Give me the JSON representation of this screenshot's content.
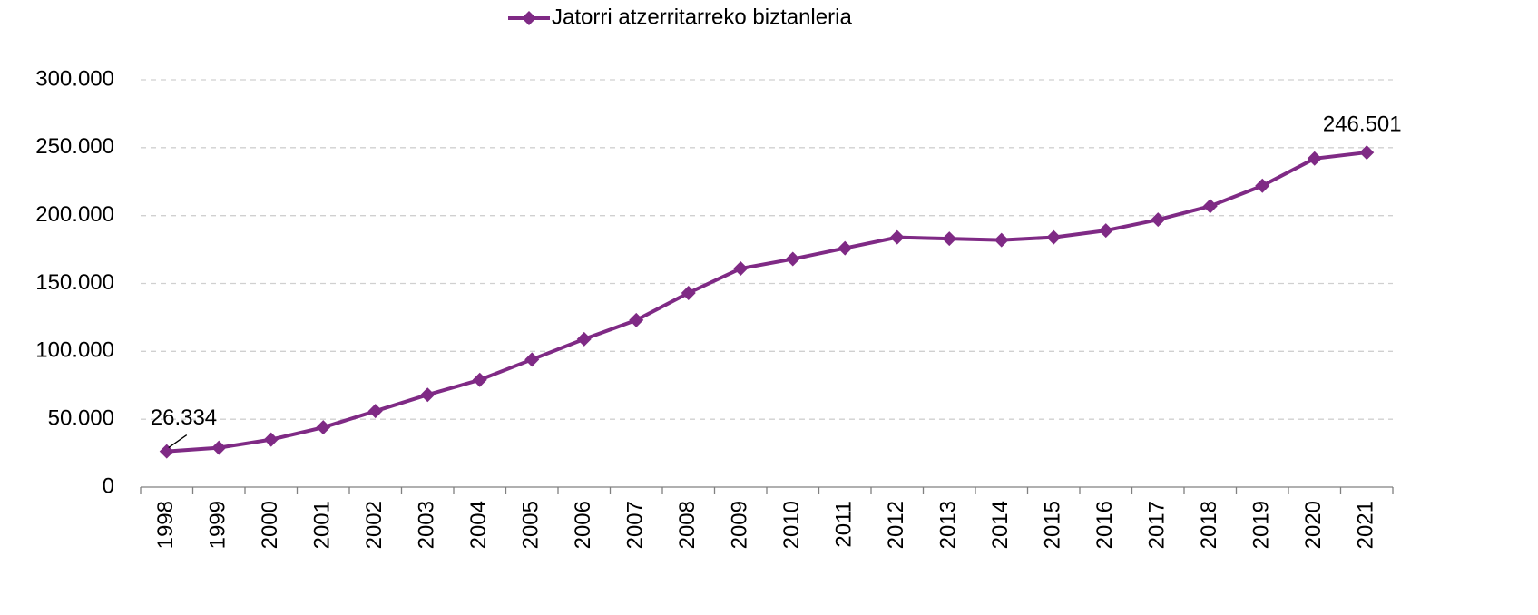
{
  "chart_data": {
    "type": "line",
    "categories": [
      "1998",
      "1999",
      "2000",
      "2001",
      "2002",
      "2003",
      "2004",
      "2005",
      "2006",
      "2007",
      "2008",
      "2009",
      "2010",
      "2011",
      "2012",
      "2013",
      "2014",
      "2015",
      "2016",
      "2017",
      "2018",
      "2019",
      "2020",
      "2021"
    ],
    "series": [
      {
        "name": "Jatorri atzerritarreko biztanleria",
        "color": "#7f2a85",
        "values": [
          26334,
          29000,
          35000,
          44000,
          56000,
          68000,
          79000,
          94000,
          109000,
          123000,
          143000,
          161000,
          168000,
          176000,
          184000,
          183000,
          182000,
          184000,
          189000,
          197000,
          207000,
          222000,
          242000,
          246501
        ],
        "value_labels": [
          "26.334",
          null,
          null,
          null,
          null,
          null,
          null,
          null,
          null,
          null,
          null,
          null,
          null,
          null,
          null,
          null,
          null,
          null,
          null,
          null,
          null,
          null,
          null,
          "246.501"
        ]
      }
    ],
    "ylim": [
      0,
      300000
    ],
    "yticks": [
      0,
      {
        "value": 50000,
        "label": "50.000"
      },
      {
        "value": 100000,
        "label": "100.000"
      },
      {
        "value": 150000,
        "label": "150.000"
      },
      {
        "value": 200000,
        "label": "200.000"
      },
      {
        "value": 250000,
        "label": "250.000"
      },
      {
        "value": 300000,
        "label": "300.000"
      }
    ],
    "grid": true,
    "legend": "top"
  }
}
